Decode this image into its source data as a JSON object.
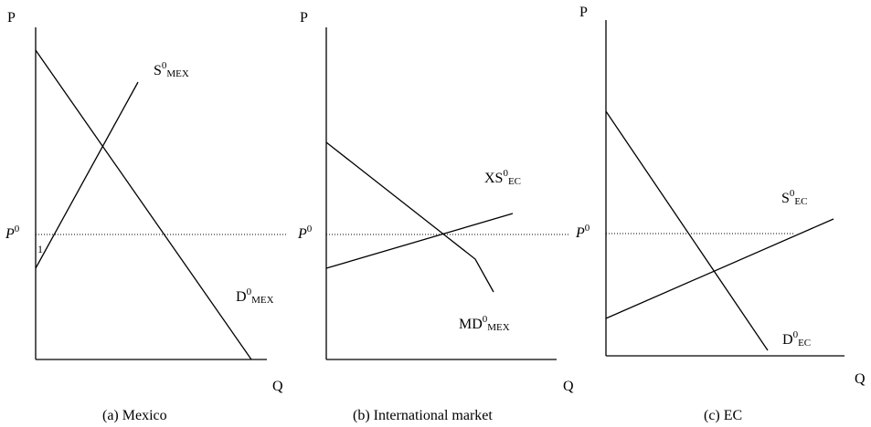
{
  "panels": [
    {
      "caption": "(a) Mexico",
      "y_axis_label": "P",
      "x_axis_label": "Q",
      "price_label": {
        "base": "P",
        "sup": "0"
      },
      "point_label": "1",
      "supply": {
        "base": "S",
        "sup": "0",
        "sub": "MEX"
      },
      "demand": {
        "base": "D",
        "sup": "0",
        "sub": "MEX"
      }
    },
    {
      "caption": "(b) International market",
      "y_axis_label": "P",
      "x_axis_label": "Q",
      "price_label": {
        "base": "P",
        "sup": "0"
      },
      "supply": {
        "base": "XS",
        "sup": "0",
        "sub": "EC"
      },
      "demand": {
        "base": "MD",
        "sup": "0",
        "sub": "MEX"
      }
    },
    {
      "caption": "(c) EC",
      "y_axis_label": "P",
      "x_axis_label": "Q",
      "price_label": {
        "base": "P",
        "sup": "0"
      },
      "supply": {
        "base": "S",
        "sup": "0",
        "sub": "EC"
      },
      "demand": {
        "base": "D",
        "sup": "0",
        "sub": "EC"
      }
    }
  ]
}
